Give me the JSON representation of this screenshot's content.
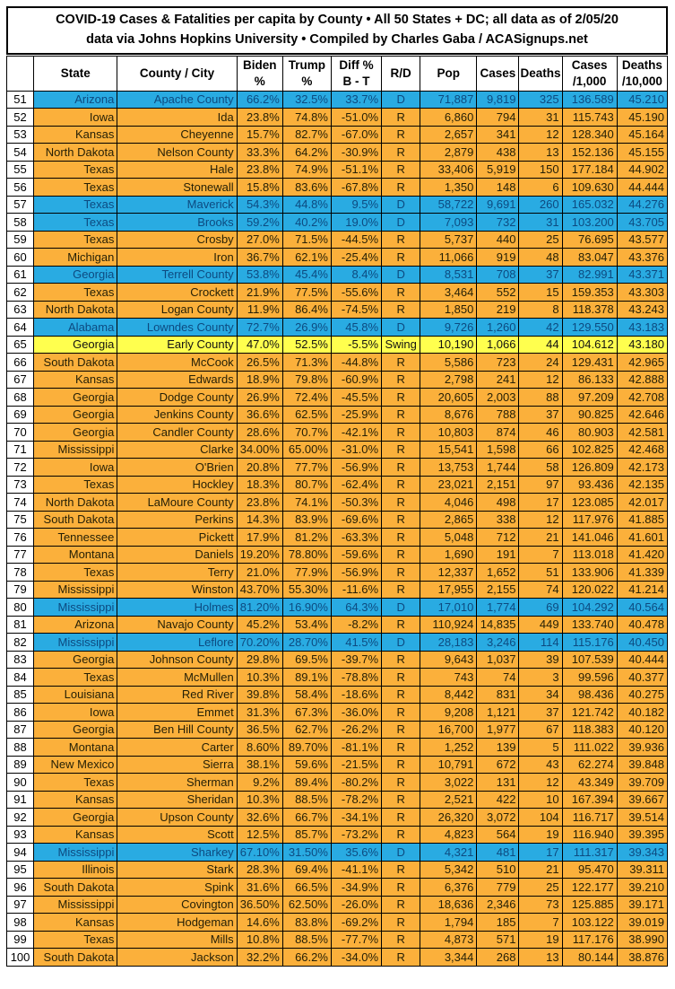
{
  "title": {
    "line1": "COVID-19 Cases & Fatalities per capita by County • All 50 States + DC; all data as of 2/05/20",
    "line2": "data via Johns Hopkins University • Compiled by Charles Gaba / ACASignups.net"
  },
  "colors": {
    "dem_row_bg": "#29abe2",
    "rep_row_bg": "#fbb03b",
    "swing_row_bg": "#ffff4e",
    "dem_text": "#0d4a80",
    "rep_text": "#262006",
    "swing_text": "#111111",
    "rank_bg": "#ffffff",
    "border": "#000000",
    "header_bg": "#ffffff",
    "header_text": "#000000"
  },
  "chart_data": {
    "type": "table",
    "title": "COVID-19 Cases & Fatalities per capita by County • All 50 States + DC; all data as of 2/05/20",
    "subtitle": "data via Johns Hopkins University • Compiled by Charles Gaba / ACASignups.net",
    "columns": [
      {
        "key": "rank",
        "label": ""
      },
      {
        "key": "state",
        "label": "State"
      },
      {
        "key": "county_city",
        "label": "County / City"
      },
      {
        "key": "biden_pct",
        "label": "Biden\n%"
      },
      {
        "key": "trump_pct",
        "label": "Trump\n%"
      },
      {
        "key": "diff_pct_b_t",
        "label": "Diff %\nB - T"
      },
      {
        "key": "r_d",
        "label": "R/D"
      },
      {
        "key": "pop",
        "label": "Pop"
      },
      {
        "key": "cases",
        "label": "Cases"
      },
      {
        "key": "deaths",
        "label": "Deaths"
      },
      {
        "key": "cases_per_1000",
        "label": "Cases\n/1,000"
      },
      {
        "key": "deaths_per_10000",
        "label": "Deaths\n/10,000"
      }
    ],
    "rows": [
      [
        51,
        "Arizona",
        "Apache County",
        "66.2%",
        "32.5%",
        "33.7%",
        "D",
        "71,887",
        "9,819",
        "325",
        "136.589",
        "45.210"
      ],
      [
        52,
        "Iowa",
        "Ida",
        "23.8%",
        "74.8%",
        "-51.0%",
        "R",
        "6,860",
        "794",
        "31",
        "115.743",
        "45.190"
      ],
      [
        53,
        "Kansas",
        "Cheyenne",
        "15.7%",
        "82.7%",
        "-67.0%",
        "R",
        "2,657",
        "341",
        "12",
        "128.340",
        "45.164"
      ],
      [
        54,
        "North Dakota",
        "Nelson County",
        "33.3%",
        "64.2%",
        "-30.9%",
        "R",
        "2,879",
        "438",
        "13",
        "152.136",
        "45.155"
      ],
      [
        55,
        "Texas",
        "Hale",
        "23.8%",
        "74.9%",
        "-51.1%",
        "R",
        "33,406",
        "5,919",
        "150",
        "177.184",
        "44.902"
      ],
      [
        56,
        "Texas",
        "Stonewall",
        "15.8%",
        "83.6%",
        "-67.8%",
        "R",
        "1,350",
        "148",
        "6",
        "109.630",
        "44.444"
      ],
      [
        57,
        "Texas",
        "Maverick",
        "54.3%",
        "44.8%",
        "9.5%",
        "D",
        "58,722",
        "9,691",
        "260",
        "165.032",
        "44.276"
      ],
      [
        58,
        "Texas",
        "Brooks",
        "59.2%",
        "40.2%",
        "19.0%",
        "D",
        "7,093",
        "732",
        "31",
        "103.200",
        "43.705"
      ],
      [
        59,
        "Texas",
        "Crosby",
        "27.0%",
        "71.5%",
        "-44.5%",
        "R",
        "5,737",
        "440",
        "25",
        "76.695",
        "43.577"
      ],
      [
        60,
        "Michigan",
        "Iron",
        "36.7%",
        "62.1%",
        "-25.4%",
        "R",
        "11,066",
        "919",
        "48",
        "83.047",
        "43.376"
      ],
      [
        61,
        "Georgia",
        "Terrell County",
        "53.8%",
        "45.4%",
        "8.4%",
        "D",
        "8,531",
        "708",
        "37",
        "82.991",
        "43.371"
      ],
      [
        62,
        "Texas",
        "Crockett",
        "21.9%",
        "77.5%",
        "-55.6%",
        "R",
        "3,464",
        "552",
        "15",
        "159.353",
        "43.303"
      ],
      [
        63,
        "North Dakota",
        "Logan County",
        "11.9%",
        "86.4%",
        "-74.5%",
        "R",
        "1,850",
        "219",
        "8",
        "118.378",
        "43.243"
      ],
      [
        64,
        "Alabama",
        "Lowndes County",
        "72.7%",
        "26.9%",
        "45.8%",
        "D",
        "9,726",
        "1,260",
        "42",
        "129.550",
        "43.183"
      ],
      [
        65,
        "Georgia",
        "Early County",
        "47.0%",
        "52.5%",
        "-5.5%",
        "Swing",
        "10,190",
        "1,066",
        "44",
        "104.612",
        "43.180"
      ],
      [
        66,
        "South Dakota",
        "McCook",
        "26.5%",
        "71.3%",
        "-44.8%",
        "R",
        "5,586",
        "723",
        "24",
        "129.431",
        "42.965"
      ],
      [
        67,
        "Kansas",
        "Edwards",
        "18.9%",
        "79.8%",
        "-60.9%",
        "R",
        "2,798",
        "241",
        "12",
        "86.133",
        "42.888"
      ],
      [
        68,
        "Georgia",
        "Dodge County",
        "26.9%",
        "72.4%",
        "-45.5%",
        "R",
        "20,605",
        "2,003",
        "88",
        "97.209",
        "42.708"
      ],
      [
        69,
        "Georgia",
        "Jenkins County",
        "36.6%",
        "62.5%",
        "-25.9%",
        "R",
        "8,676",
        "788",
        "37",
        "90.825",
        "42.646"
      ],
      [
        70,
        "Georgia",
        "Candler County",
        "28.6%",
        "70.7%",
        "-42.1%",
        "R",
        "10,803",
        "874",
        "46",
        "80.903",
        "42.581"
      ],
      [
        71,
        "Mississippi",
        "Clarke",
        "34.00%",
        "65.00%",
        "-31.0%",
        "R",
        "15,541",
        "1,598",
        "66",
        "102.825",
        "42.468"
      ],
      [
        72,
        "Iowa",
        "O'Brien",
        "20.8%",
        "77.7%",
        "-56.9%",
        "R",
        "13,753",
        "1,744",
        "58",
        "126.809",
        "42.173"
      ],
      [
        73,
        "Texas",
        "Hockley",
        "18.3%",
        "80.7%",
        "-62.4%",
        "R",
        "23,021",
        "2,151",
        "97",
        "93.436",
        "42.135"
      ],
      [
        74,
        "North Dakota",
        "LaMoure County",
        "23.8%",
        "74.1%",
        "-50.3%",
        "R",
        "4,046",
        "498",
        "17",
        "123.085",
        "42.017"
      ],
      [
        75,
        "South Dakota",
        "Perkins",
        "14.3%",
        "83.9%",
        "-69.6%",
        "R",
        "2,865",
        "338",
        "12",
        "117.976",
        "41.885"
      ],
      [
        76,
        "Tennessee",
        "Pickett",
        "17.9%",
        "81.2%",
        "-63.3%",
        "R",
        "5,048",
        "712",
        "21",
        "141.046",
        "41.601"
      ],
      [
        77,
        "Montana",
        "Daniels",
        "19.20%",
        "78.80%",
        "-59.6%",
        "R",
        "1,690",
        "191",
        "7",
        "113.018",
        "41.420"
      ],
      [
        78,
        "Texas",
        "Terry",
        "21.0%",
        "77.9%",
        "-56.9%",
        "R",
        "12,337",
        "1,652",
        "51",
        "133.906",
        "41.339"
      ],
      [
        79,
        "Mississippi",
        "Winston",
        "43.70%",
        "55.30%",
        "-11.6%",
        "R",
        "17,955",
        "2,155",
        "74",
        "120.022",
        "41.214"
      ],
      [
        80,
        "Mississippi",
        "Holmes",
        "81.20%",
        "16.90%",
        "64.3%",
        "D",
        "17,010",
        "1,774",
        "69",
        "104.292",
        "40.564"
      ],
      [
        81,
        "Arizona",
        "Navajo County",
        "45.2%",
        "53.4%",
        "-8.2%",
        "R",
        "110,924",
        "14,835",
        "449",
        "133.740",
        "40.478"
      ],
      [
        82,
        "Mississippi",
        "Leflore",
        "70.20%",
        "28.70%",
        "41.5%",
        "D",
        "28,183",
        "3,246",
        "114",
        "115.176",
        "40.450"
      ],
      [
        83,
        "Georgia",
        "Johnson County",
        "29.8%",
        "69.5%",
        "-39.7%",
        "R",
        "9,643",
        "1,037",
        "39",
        "107.539",
        "40.444"
      ],
      [
        84,
        "Texas",
        "McMullen",
        "10.3%",
        "89.1%",
        "-78.8%",
        "R",
        "743",
        "74",
        "3",
        "99.596",
        "40.377"
      ],
      [
        85,
        "Louisiana",
        "Red River",
        "39.8%",
        "58.4%",
        "-18.6%",
        "R",
        "8,442",
        "831",
        "34",
        "98.436",
        "40.275"
      ],
      [
        86,
        "Iowa",
        "Emmet",
        "31.3%",
        "67.3%",
        "-36.0%",
        "R",
        "9,208",
        "1,121",
        "37",
        "121.742",
        "40.182"
      ],
      [
        87,
        "Georgia",
        "Ben Hill County",
        "36.5%",
        "62.7%",
        "-26.2%",
        "R",
        "16,700",
        "1,977",
        "67",
        "118.383",
        "40.120"
      ],
      [
        88,
        "Montana",
        "Carter",
        "8.60%",
        "89.70%",
        "-81.1%",
        "R",
        "1,252",
        "139",
        "5",
        "111.022",
        "39.936"
      ],
      [
        89,
        "New Mexico",
        "Sierra",
        "38.1%",
        "59.6%",
        "-21.5%",
        "R",
        "10,791",
        "672",
        "43",
        "62.274",
        "39.848"
      ],
      [
        90,
        "Texas",
        "Sherman",
        "9.2%",
        "89.4%",
        "-80.2%",
        "R",
        "3,022",
        "131",
        "12",
        "43.349",
        "39.709"
      ],
      [
        91,
        "Kansas",
        "Sheridan",
        "10.3%",
        "88.5%",
        "-78.2%",
        "R",
        "2,521",
        "422",
        "10",
        "167.394",
        "39.667"
      ],
      [
        92,
        "Georgia",
        "Upson County",
        "32.6%",
        "66.7%",
        "-34.1%",
        "R",
        "26,320",
        "3,072",
        "104",
        "116.717",
        "39.514"
      ],
      [
        93,
        "Kansas",
        "Scott",
        "12.5%",
        "85.7%",
        "-73.2%",
        "R",
        "4,823",
        "564",
        "19",
        "116.940",
        "39.395"
      ],
      [
        94,
        "Mississippi",
        "Sharkey",
        "67.10%",
        "31.50%",
        "35.6%",
        "D",
        "4,321",
        "481",
        "17",
        "111.317",
        "39.343"
      ],
      [
        95,
        "Illinois",
        "Stark",
        "28.3%",
        "69.4%",
        "-41.1%",
        "R",
        "5,342",
        "510",
        "21",
        "95.470",
        "39.311"
      ],
      [
        96,
        "South Dakota",
        "Spink",
        "31.6%",
        "66.5%",
        "-34.9%",
        "R",
        "6,376",
        "779",
        "25",
        "122.177",
        "39.210"
      ],
      [
        97,
        "Mississippi",
        "Covington",
        "36.50%",
        "62.50%",
        "-26.0%",
        "R",
        "18,636",
        "2,346",
        "73",
        "125.885",
        "39.171"
      ],
      [
        98,
        "Kansas",
        "Hodgeman",
        "14.6%",
        "83.8%",
        "-69.2%",
        "R",
        "1,794",
        "185",
        "7",
        "103.122",
        "39.019"
      ],
      [
        99,
        "Texas",
        "Mills",
        "10.8%",
        "88.5%",
        "-77.7%",
        "R",
        "4,873",
        "571",
        "19",
        "117.176",
        "38.990"
      ],
      [
        100,
        "South Dakota",
        "Jackson",
        "32.2%",
        "66.2%",
        "-34.0%",
        "R",
        "3,344",
        "268",
        "13",
        "80.144",
        "38.876"
      ]
    ]
  }
}
